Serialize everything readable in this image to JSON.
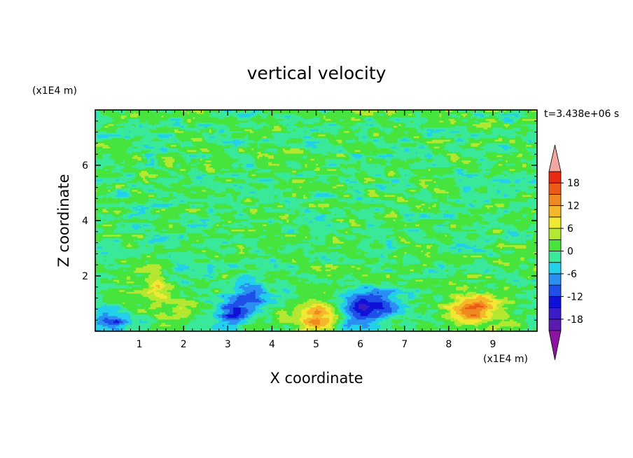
{
  "chart_data": {
    "type": "heatmap",
    "title": "vertical velocity",
    "xlabel": "X coordinate",
    "ylabel": "Z coordinate",
    "x_unit": "(x1E4 m)",
    "y_unit": "(x1E4 m)",
    "time_label": "t=3.438e+06 s",
    "xlim": [
      0,
      10
    ],
    "ylim": [
      0,
      8
    ],
    "x_ticks": [
      "1",
      "2",
      "3",
      "4",
      "5",
      "6",
      "7",
      "8",
      "9"
    ],
    "y_ticks": [
      "2",
      "4",
      "6"
    ],
    "colorbar": {
      "levels": [
        -21,
        -18,
        -15,
        -12,
        -9,
        -6,
        -3,
        0,
        3,
        6,
        9,
        12,
        15,
        18,
        21
      ],
      "tick_labels": [
        "18",
        "12",
        "6",
        "0",
        "-6",
        "-12",
        "-18"
      ],
      "colors": [
        "#5a1cb0",
        "#3a1cc8",
        "#1010d8",
        "#1f4ee8",
        "#2a8ef2",
        "#22d0ea",
        "#3ae89a",
        "#46e43c",
        "#b4e830",
        "#f0e832",
        "#f4b82a",
        "#f08a1e",
        "#ec5a16",
        "#e82a12"
      ],
      "under_color": "#8c14a0",
      "over_color": "#f2a8a0"
    },
    "features": [
      {
        "x": 8.55,
        "z": 0.8,
        "value": 15,
        "sign": "updraft"
      },
      {
        "x": 5.0,
        "z": 0.55,
        "value": 12,
        "sign": "updraft"
      },
      {
        "x": 1.4,
        "z": 1.5,
        "value": 7,
        "sign": "updraft"
      },
      {
        "x": 1.85,
        "z": 0.6,
        "value": 5,
        "sign": "updraft"
      },
      {
        "x": 6.3,
        "z": 1.0,
        "value": -14,
        "sign": "downdraft"
      },
      {
        "x": 3.1,
        "z": 0.7,
        "value": -10,
        "sign": "downdraft"
      },
      {
        "x": 3.55,
        "z": 1.2,
        "value": -9,
        "sign": "downdraft"
      },
      {
        "x": 0.35,
        "z": 0.35,
        "value": -10,
        "sign": "downdraft"
      },
      {
        "x": 5.8,
        "z": 0.4,
        "value": -8,
        "sign": "downdraft"
      }
    ],
    "grid": false
  }
}
